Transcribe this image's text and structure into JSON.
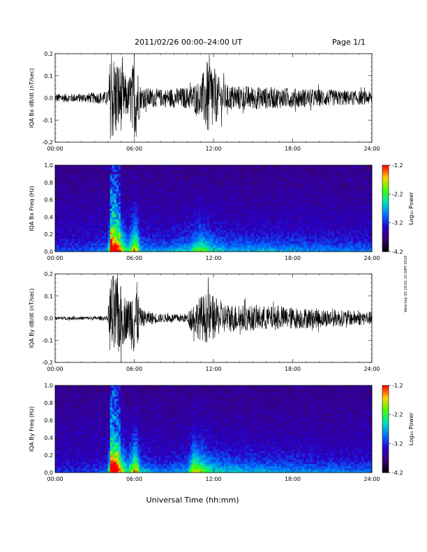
{
  "header": {
    "title": "2011/02/26  00:00–24:00 UT",
    "page_label": "Page 1/1"
  },
  "side_note": "Wed Sep 03 10:01:10 GMT 2019",
  "xlabel": "Universal Time (hh:mm)",
  "colors": {
    "trace": "#000000",
    "colormap": [
      "#000000",
      "#3a0070",
      "#2800c8",
      "#0070ff",
      "#00e0c0",
      "#40ff00",
      "#ffd000",
      "#ff0000"
    ]
  },
  "chart_data": [
    {
      "type": "line",
      "ylabel": "IQA Bx dB/dt (nT/sec)",
      "ylim": [
        -0.2,
        0.2
      ],
      "yticks": [
        "0.2",
        "0.1",
        "0.0",
        "-0.1",
        "-0.2"
      ],
      "ytick_values": [
        0.2,
        0.1,
        0.0,
        -0.1,
        -0.2
      ],
      "xticks": [
        "00:00",
        "06:00",
        "12:00",
        "18:00",
        "24:00"
      ],
      "x_hours": [
        0,
        2,
        4,
        4.2,
        4.5,
        5,
        5.5,
        6.1,
        6.5,
        8,
        10,
        11,
        11.7,
        12.3,
        13,
        16,
        20,
        24
      ],
      "amplitude": [
        0.02,
        0.02,
        0.03,
        0.2,
        0.2,
        0.15,
        0.08,
        0.2,
        0.05,
        0.04,
        0.05,
        0.08,
        0.2,
        0.1,
        0.06,
        0.05,
        0.04,
        0.03
      ]
    },
    {
      "type": "heatmap",
      "ylabel": "IQA Bx Freq (Hz)",
      "ylim": [
        0.0,
        1.0
      ],
      "yticks": [
        "1.0",
        "0.8",
        "0.6",
        "0.4",
        "0.2",
        "0.0"
      ],
      "ytick_values": [
        1.0,
        0.8,
        0.6,
        0.4,
        0.2,
        0.0
      ],
      "xticks": [
        "00:00",
        "06:00",
        "12:00",
        "18:00",
        "24:00"
      ],
      "colorbar_label": "Log₁₀ Power",
      "colorbar_ticks": [
        "-1.2",
        "-2.2",
        "-3.2",
        "-4.2"
      ],
      "colorbar_range": [
        -4.2,
        -1.2
      ],
      "activity_hours": [
        0,
        2,
        4,
        4.2,
        4.6,
        5,
        5.5,
        6.1,
        6.5,
        8,
        10,
        11,
        12,
        13,
        16,
        20,
        24
      ],
      "activity_level": [
        0.15,
        0.15,
        0.25,
        0.95,
        0.9,
        0.7,
        0.4,
        0.8,
        0.3,
        0.25,
        0.35,
        0.55,
        0.4,
        0.3,
        0.3,
        0.25,
        0.2
      ]
    },
    {
      "type": "line",
      "ylabel": "IQA By dB/dt (nT/sec)",
      "ylim": [
        -0.2,
        0.2
      ],
      "yticks": [
        "0.2",
        "0.1",
        "0.0",
        "-0.1",
        "-0.2"
      ],
      "ytick_values": [
        0.2,
        0.1,
        0.0,
        -0.1,
        -0.2
      ],
      "xticks": [
        "00:00",
        "06:00",
        "12:00",
        "18:00",
        "24:00"
      ],
      "x_hours": [
        0,
        2,
        4,
        4.2,
        4.5,
        5,
        5.5,
        6.1,
        6.5,
        8,
        10,
        10.3,
        11,
        11.7,
        12.5,
        14,
        18,
        24
      ],
      "amplitude": [
        0.008,
        0.008,
        0.01,
        0.2,
        0.2,
        0.15,
        0.08,
        0.2,
        0.04,
        0.02,
        0.02,
        0.06,
        0.1,
        0.12,
        0.07,
        0.06,
        0.05,
        0.03
      ]
    },
    {
      "type": "heatmap",
      "ylabel": "IQA By Freq (Hz)",
      "ylim": [
        0.0,
        1.0
      ],
      "yticks": [
        "1.0",
        "0.8",
        "0.6",
        "0.4",
        "0.2",
        "0.0"
      ],
      "ytick_values": [
        1.0,
        0.8,
        0.6,
        0.4,
        0.2,
        0.0
      ],
      "xticks": [
        "00:00",
        "06:00",
        "12:00",
        "18:00",
        "24:00"
      ],
      "colorbar_label": "Log₁₀ Power",
      "colorbar_ticks": [
        "-1.2",
        "-2.2",
        "-3.2",
        "-4.2"
      ],
      "colorbar_range": [
        -4.2,
        -1.2
      ],
      "activity_hours": [
        0,
        2,
        4,
        4.2,
        4.6,
        5,
        5.5,
        6.1,
        6.5,
        8,
        10,
        10.5,
        11,
        12,
        13,
        16,
        20,
        24
      ],
      "activity_level": [
        0.1,
        0.1,
        0.2,
        0.95,
        0.9,
        0.7,
        0.4,
        0.8,
        0.35,
        0.2,
        0.3,
        0.7,
        0.6,
        0.4,
        0.35,
        0.3,
        0.25,
        0.2
      ]
    }
  ]
}
